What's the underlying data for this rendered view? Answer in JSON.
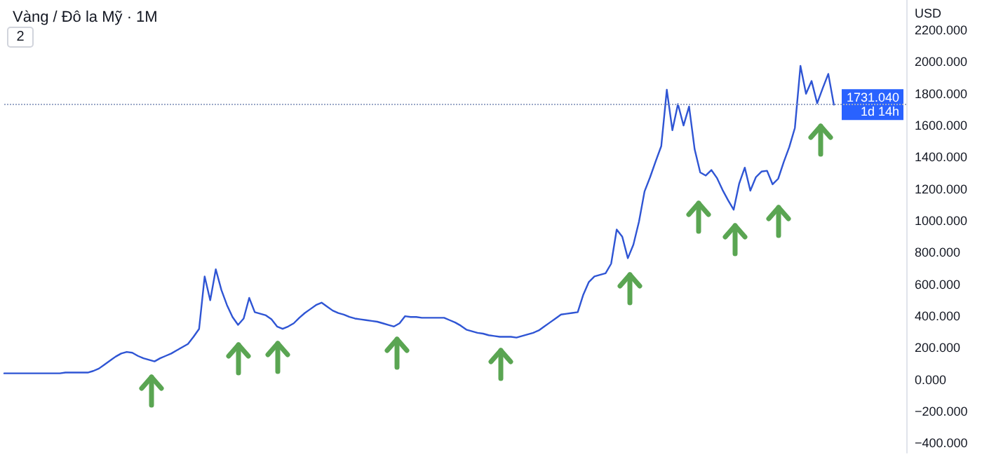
{
  "chart_data": {
    "type": "line",
    "title": "Vàng / Đô la Mỹ · 1M",
    "ylabel": "USD",
    "annotations": [
      "2",
      "1d 14h"
    ],
    "categories": [
      null,
      null,
      null,
      null,
      null,
      null,
      null,
      null,
      null,
      null,
      null,
      null,
      null,
      null,
      null,
      null,
      null,
      null,
      null,
      null,
      null,
      null,
      null,
      null,
      null,
      null,
      null,
      null,
      null,
      null,
      null,
      null,
      null,
      null,
      null,
      null,
      null,
      null,
      null,
      null,
      null,
      null,
      null,
      null,
      null,
      null,
      null,
      null,
      null,
      null,
      null,
      null,
      null,
      null,
      null,
      null,
      null,
      null,
      null,
      null,
      null,
      null,
      null,
      null,
      null,
      null,
      null,
      null,
      null,
      null,
      null,
      null,
      null,
      null,
      null,
      null,
      null,
      null,
      null,
      null,
      null,
      null,
      null,
      null,
      null,
      null,
      null,
      null,
      null,
      null,
      null,
      null,
      null,
      null,
      null,
      null,
      null,
      null,
      null,
      null,
      null,
      null,
      null,
      null,
      null,
      null,
      null,
      null,
      null,
      null,
      null,
      null,
      null,
      null,
      null,
      null,
      null,
      null,
      null,
      null,
      null,
      null,
      null,
      null,
      null,
      null,
      null,
      null,
      null,
      null,
      null,
      null,
      null,
      null,
      null,
      null,
      null,
      null,
      null,
      null,
      null,
      null,
      null,
      null,
      null,
      null,
      null,
      null,
      null,
      null,
      null,
      null,
      null,
      null,
      null,
      null,
      null,
      null,
      null,
      null,
      null,
      null,
      null
    ],
    "series": [
      {
        "color": "#2f55d4",
        "values": [
          40,
          40,
          40,
          40,
          40,
          40,
          40,
          40,
          40,
          40,
          40,
          45,
          45,
          45,
          45,
          45,
          55,
          70,
          95,
          120,
          145,
          165,
          175,
          170,
          150,
          135,
          125,
          115,
          135,
          150,
          165,
          185,
          205,
          225,
          270,
          320,
          650,
          500,
          695,
          565,
          470,
          395,
          345,
          385,
          515,
          425,
          415,
          405,
          380,
          335,
          320,
          335,
          355,
          390,
          420,
          445,
          470,
          485,
          460,
          435,
          420,
          410,
          395,
          385,
          380,
          375,
          370,
          365,
          355,
          345,
          335,
          355,
          400,
          395,
          395,
          390,
          390,
          390,
          390,
          390,
          375,
          360,
          340,
          315,
          305,
          295,
          290,
          280,
          275,
          270,
          270,
          270,
          265,
          275,
          285,
          295,
          310,
          335,
          360,
          385,
          410,
          415,
          420,
          425,
          535,
          615,
          650,
          660,
          670,
          730,
          945,
          900,
          765,
          850,
          995,
          1185,
          1275,
          1375,
          1470,
          1825,
          1570,
          1735,
          1600,
          1720,
          1450,
          1305,
          1285,
          1320,
          1270,
          1195,
          1130,
          1070,
          1235,
          1335,
          1190,
          1275,
          1310,
          1315,
          1230,
          1265,
          1370,
          1465,
          1585,
          1975,
          1800,
          1880,
          1740,
          1835,
          1925,
          1731.04,
          null,
          null,
          null,
          null,
          null,
          null,
          null,
          null,
          null,
          null,
          null,
          null,
          null
        ]
      }
    ],
    "ylim": [
      -460,
      2390
    ],
    "yticks": [
      {
        "value": -400,
        "label": "−400.000"
      },
      {
        "value": -200,
        "label": "−200.000"
      },
      {
        "value": 0,
        "label": "0.000"
      },
      {
        "value": 200,
        "label": "200.000"
      },
      {
        "value": 400,
        "label": "400.000"
      },
      {
        "value": 600,
        "label": "600.000"
      },
      {
        "value": 800,
        "label": "800.000"
      },
      {
        "value": 1000,
        "label": "1000.000"
      },
      {
        "value": 1200,
        "label": "1200.000"
      },
      {
        "value": 1400,
        "label": "1400.000"
      },
      {
        "value": 1600,
        "label": "1600.000"
      },
      {
        "value": 1800,
        "label": "1800.000"
      },
      {
        "value": 2000,
        "label": "2000.000"
      },
      {
        "value": 2200,
        "label": "2200.000"
      }
    ],
    "ref_lines": [
      {
        "axis": "y",
        "value": 1731.04,
        "label": "1731.040",
        "color": "#9aa7c7",
        "line_style": "dotted"
      }
    ],
    "grid": false,
    "marker": "none",
    "line_style": "solid"
  }
}
